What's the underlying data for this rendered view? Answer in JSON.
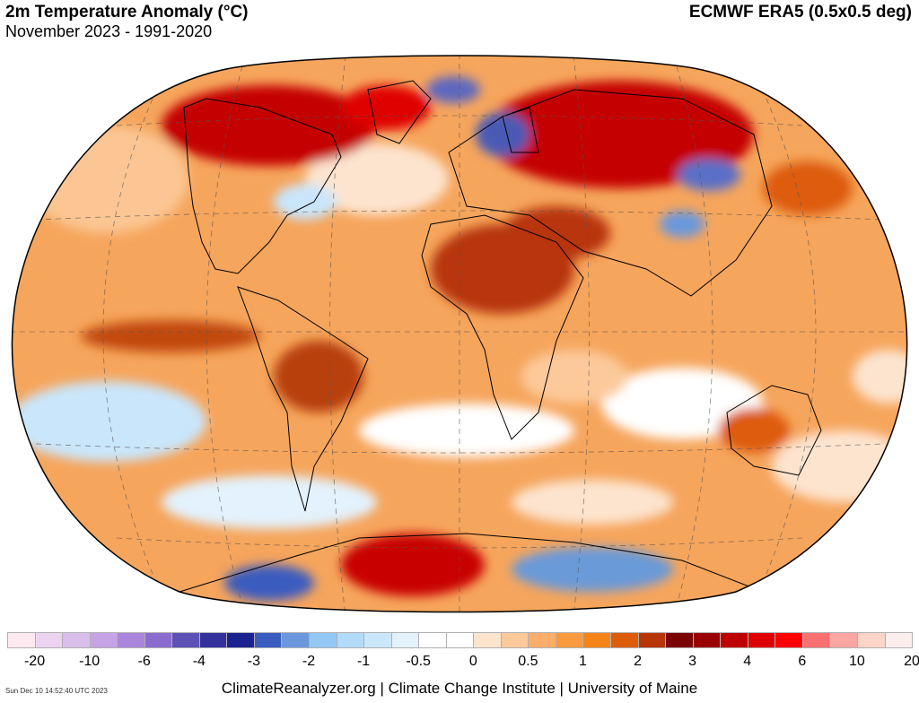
{
  "header": {
    "title": "2m Temperature Anomaly (°C)",
    "subtitle": "November 2023 - 1991-2020",
    "source": "ECMWF ERA5 (0.5x0.5 deg)"
  },
  "legend": {
    "colors": [
      "#fde9f0",
      "#ecd3f0",
      "#d9bdeb",
      "#c6a3e6",
      "#a985dc",
      "#8a6ccf",
      "#5d50b6",
      "#34319c",
      "#1a2290",
      "#3a5cbf",
      "#6b98dc",
      "#94c6f3",
      "#b2dbf8",
      "#c9e6fb",
      "#e3f2fd",
      "#ffffff",
      "#ffffff",
      "#fde4cf",
      "#fcc99a",
      "#fbae6c",
      "#f99a3e",
      "#f58418",
      "#dd5c0a",
      "#b83508",
      "#7a0303",
      "#9a0000",
      "#bd0000",
      "#df0000",
      "#ff0000",
      "#fa7070",
      "#fba6a3",
      "#fdd4c8",
      "#fdeeee"
    ],
    "tick_labels": [
      "-20",
      "-10",
      "-6",
      "-4",
      "-3",
      "-2",
      "-1",
      "-0.5",
      "0",
      "0.5",
      "1",
      "2",
      "3",
      "4",
      "6",
      "10",
      "20"
    ]
  },
  "footer": {
    "credit": "ClimateReanalyzer.org | Climate Change Institute | University of Maine",
    "timestamp": "Sun Dec 10 14:52:40 UTC 2023"
  },
  "map": {
    "projection": "Winkel Tripel",
    "regions": [
      {
        "name": "canada-arctic-warm",
        "color": "#c40000"
      },
      {
        "name": "central-asia-siberia-warm",
        "color": "#c40000"
      },
      {
        "name": "north-africa-middle-east-warm",
        "color": "#a83000"
      },
      {
        "name": "east-pacific-band-warm",
        "color": "#c24a10"
      },
      {
        "name": "south-america-warm",
        "color": "#b8400a"
      },
      {
        "name": "antarctic-weddell-warm",
        "color": "#c80000"
      },
      {
        "name": "scandinavia-cold",
        "color": "#4a5ab5"
      },
      {
        "name": "greenland-cold",
        "color": "#5d68c0"
      },
      {
        "name": "central-asia-cold",
        "color": "#5a70c8"
      },
      {
        "name": "east-antarctica-cold",
        "color": "#6a9ad8"
      }
    ]
  }
}
